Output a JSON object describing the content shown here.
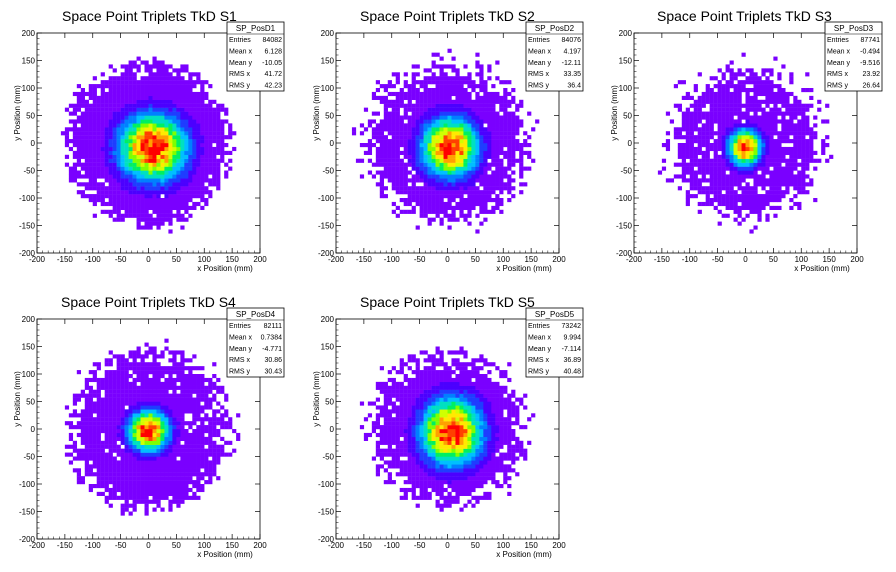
{
  "chart_data": [
    {
      "type": "heatmap",
      "title": "Space Point Triplets TkD S1",
      "xlabel": "x Position (mm)",
      "ylabel": "y Position (mm)",
      "xlim": [
        -200,
        200
      ],
      "ylim": [
        -200,
        200
      ],
      "xticks": [
        "-200",
        "-150",
        "-100",
        "-50",
        "0",
        "50",
        "100",
        "150",
        "200"
      ],
      "yticks": [
        "-200",
        "-150",
        "-100",
        "-50",
        "0",
        "50",
        "100",
        "150",
        "200"
      ],
      "stats": {
        "name": "SP_PosD1",
        "rows": [
          {
            "label": "Entries",
            "value": "84082"
          },
          {
            "label": "Mean x",
            "value": "6.128"
          },
          {
            "label": "Mean y",
            "value": "-10.05"
          },
          {
            "label": "RMS x",
            "value": "41.72"
          },
          {
            "label": "RMS y",
            "value": "42.23"
          }
        ]
      },
      "distribution": {
        "center": [
          8,
          -8
        ],
        "sigma": [
          40,
          40
        ],
        "radius": 155,
        "halo": 0.05,
        "peak_density": 1.0
      }
    },
    {
      "type": "heatmap",
      "title": "Space Point Triplets TkD S2",
      "xlabel": "x Position (mm)",
      "ylabel": "y Position (mm)",
      "xlim": [
        -200,
        200
      ],
      "ylim": [
        -200,
        200
      ],
      "xticks": [
        "-200",
        "-150",
        "-100",
        "-50",
        "0",
        "50",
        "100",
        "150",
        "200"
      ],
      "yticks": [
        "-200",
        "-150",
        "-100",
        "-50",
        "0",
        "50",
        "100",
        "150",
        "200"
      ],
      "stats": {
        "name": "SP_PosD2",
        "rows": [
          {
            "label": "Entries",
            "value": "84076"
          },
          {
            "label": "Mean x",
            "value": "4.197"
          },
          {
            "label": "Mean y",
            "value": "-12.11"
          },
          {
            "label": "RMS x",
            "value": "33.35"
          },
          {
            "label": "RMS y",
            "value": "36.4"
          }
        ]
      },
      "distribution": {
        "center": [
          4,
          -8
        ],
        "sigma": [
          33,
          35
        ],
        "radius": 160,
        "halo": 0.35,
        "peak_density": 1.0
      }
    },
    {
      "type": "heatmap",
      "title": "Space Point Triplets TkD S3",
      "xlabel": "x Position (mm)",
      "ylabel": "y Position (mm)",
      "xlim": [
        -200,
        200
      ],
      "ylim": [
        -200,
        200
      ],
      "xticks": [
        "-200",
        "-150",
        "-100",
        "-50",
        "0",
        "50",
        "100",
        "150",
        "200"
      ],
      "yticks": [
        "-200",
        "-150",
        "-100",
        "-50",
        "0",
        "50",
        "100",
        "150",
        "200"
      ],
      "stats": {
        "name": "SP_PosD3",
        "rows": [
          {
            "label": "Entries",
            "value": "87741"
          },
          {
            "label": "Mean x",
            "value": "-0.494"
          },
          {
            "label": "Mean y",
            "value": "-9.516"
          },
          {
            "label": "RMS x",
            "value": "23.92"
          },
          {
            "label": "RMS y",
            "value": "26.64"
          }
        ]
      },
      "distribution": {
        "center": [
          -1,
          -8
        ],
        "sigma": [
          19,
          21
        ],
        "radius": 155,
        "halo": 0.45,
        "peak_density": 1.0
      }
    },
    {
      "type": "heatmap",
      "title": "Space Point Triplets TkD S4",
      "xlabel": "x Position (mm)",
      "ylabel": "y Position (mm)",
      "xlim": [
        -200,
        200
      ],
      "ylim": [
        -200,
        200
      ],
      "xticks": [
        "-200",
        "-150",
        "-100",
        "-50",
        "0",
        "50",
        "100",
        "150",
        "200"
      ],
      "yticks": [
        "-200",
        "-150",
        "-100",
        "-50",
        "0",
        "50",
        "100",
        "150",
        "200"
      ],
      "stats": {
        "name": "SP_PosD4",
        "rows": [
          {
            "label": "Entries",
            "value": "82111"
          },
          {
            "label": "Mean x",
            "value": "0.7384"
          },
          {
            "label": "Mean y",
            "value": "-4.771"
          },
          {
            "label": "RMS x",
            "value": "30.86"
          },
          {
            "label": "RMS y",
            "value": "30.43"
          }
        ]
      },
      "distribution": {
        "center": [
          0,
          -3
        ],
        "sigma": [
          24,
          24
        ],
        "radius": 155,
        "halo": 0.2,
        "peak_density": 1.0
      }
    },
    {
      "type": "heatmap",
      "title": "Space Point Triplets TkD S5",
      "xlabel": "x Position (mm)",
      "ylabel": "y Position (mm)",
      "xlim": [
        -200,
        200
      ],
      "ylim": [
        -200,
        200
      ],
      "xticks": [
        "-200",
        "-150",
        "-100",
        "-50",
        "0",
        "50",
        "100",
        "150",
        "200"
      ],
      "yticks": [
        "-200",
        "-150",
        "-100",
        "-50",
        "0",
        "50",
        "100",
        "150",
        "200"
      ],
      "stats": {
        "name": "SP_PosD5",
        "rows": [
          {
            "label": "Entries",
            "value": "73242"
          },
          {
            "label": "Mean x",
            "value": "9.994"
          },
          {
            "label": "Mean y",
            "value": "-7.114"
          },
          {
            "label": "RMS x",
            "value": "36.89"
          },
          {
            "label": "RMS y",
            "value": "40.48"
          }
        ]
      },
      "distribution": {
        "center": [
          8,
          -5
        ],
        "sigma": [
          36,
          40
        ],
        "radius": 150,
        "halo": 0.25,
        "peak_density": 1.0
      }
    }
  ],
  "colors": {
    "palette": [
      "#7a00ff",
      "#4b00ff",
      "#1f3dff",
      "#0080ff",
      "#00bfff",
      "#00e0c0",
      "#00f060",
      "#7fff00",
      "#d0ff00",
      "#ffea00",
      "#ffa000",
      "#ff4000",
      "#ff0000"
    ],
    "background": "#ffffff"
  }
}
